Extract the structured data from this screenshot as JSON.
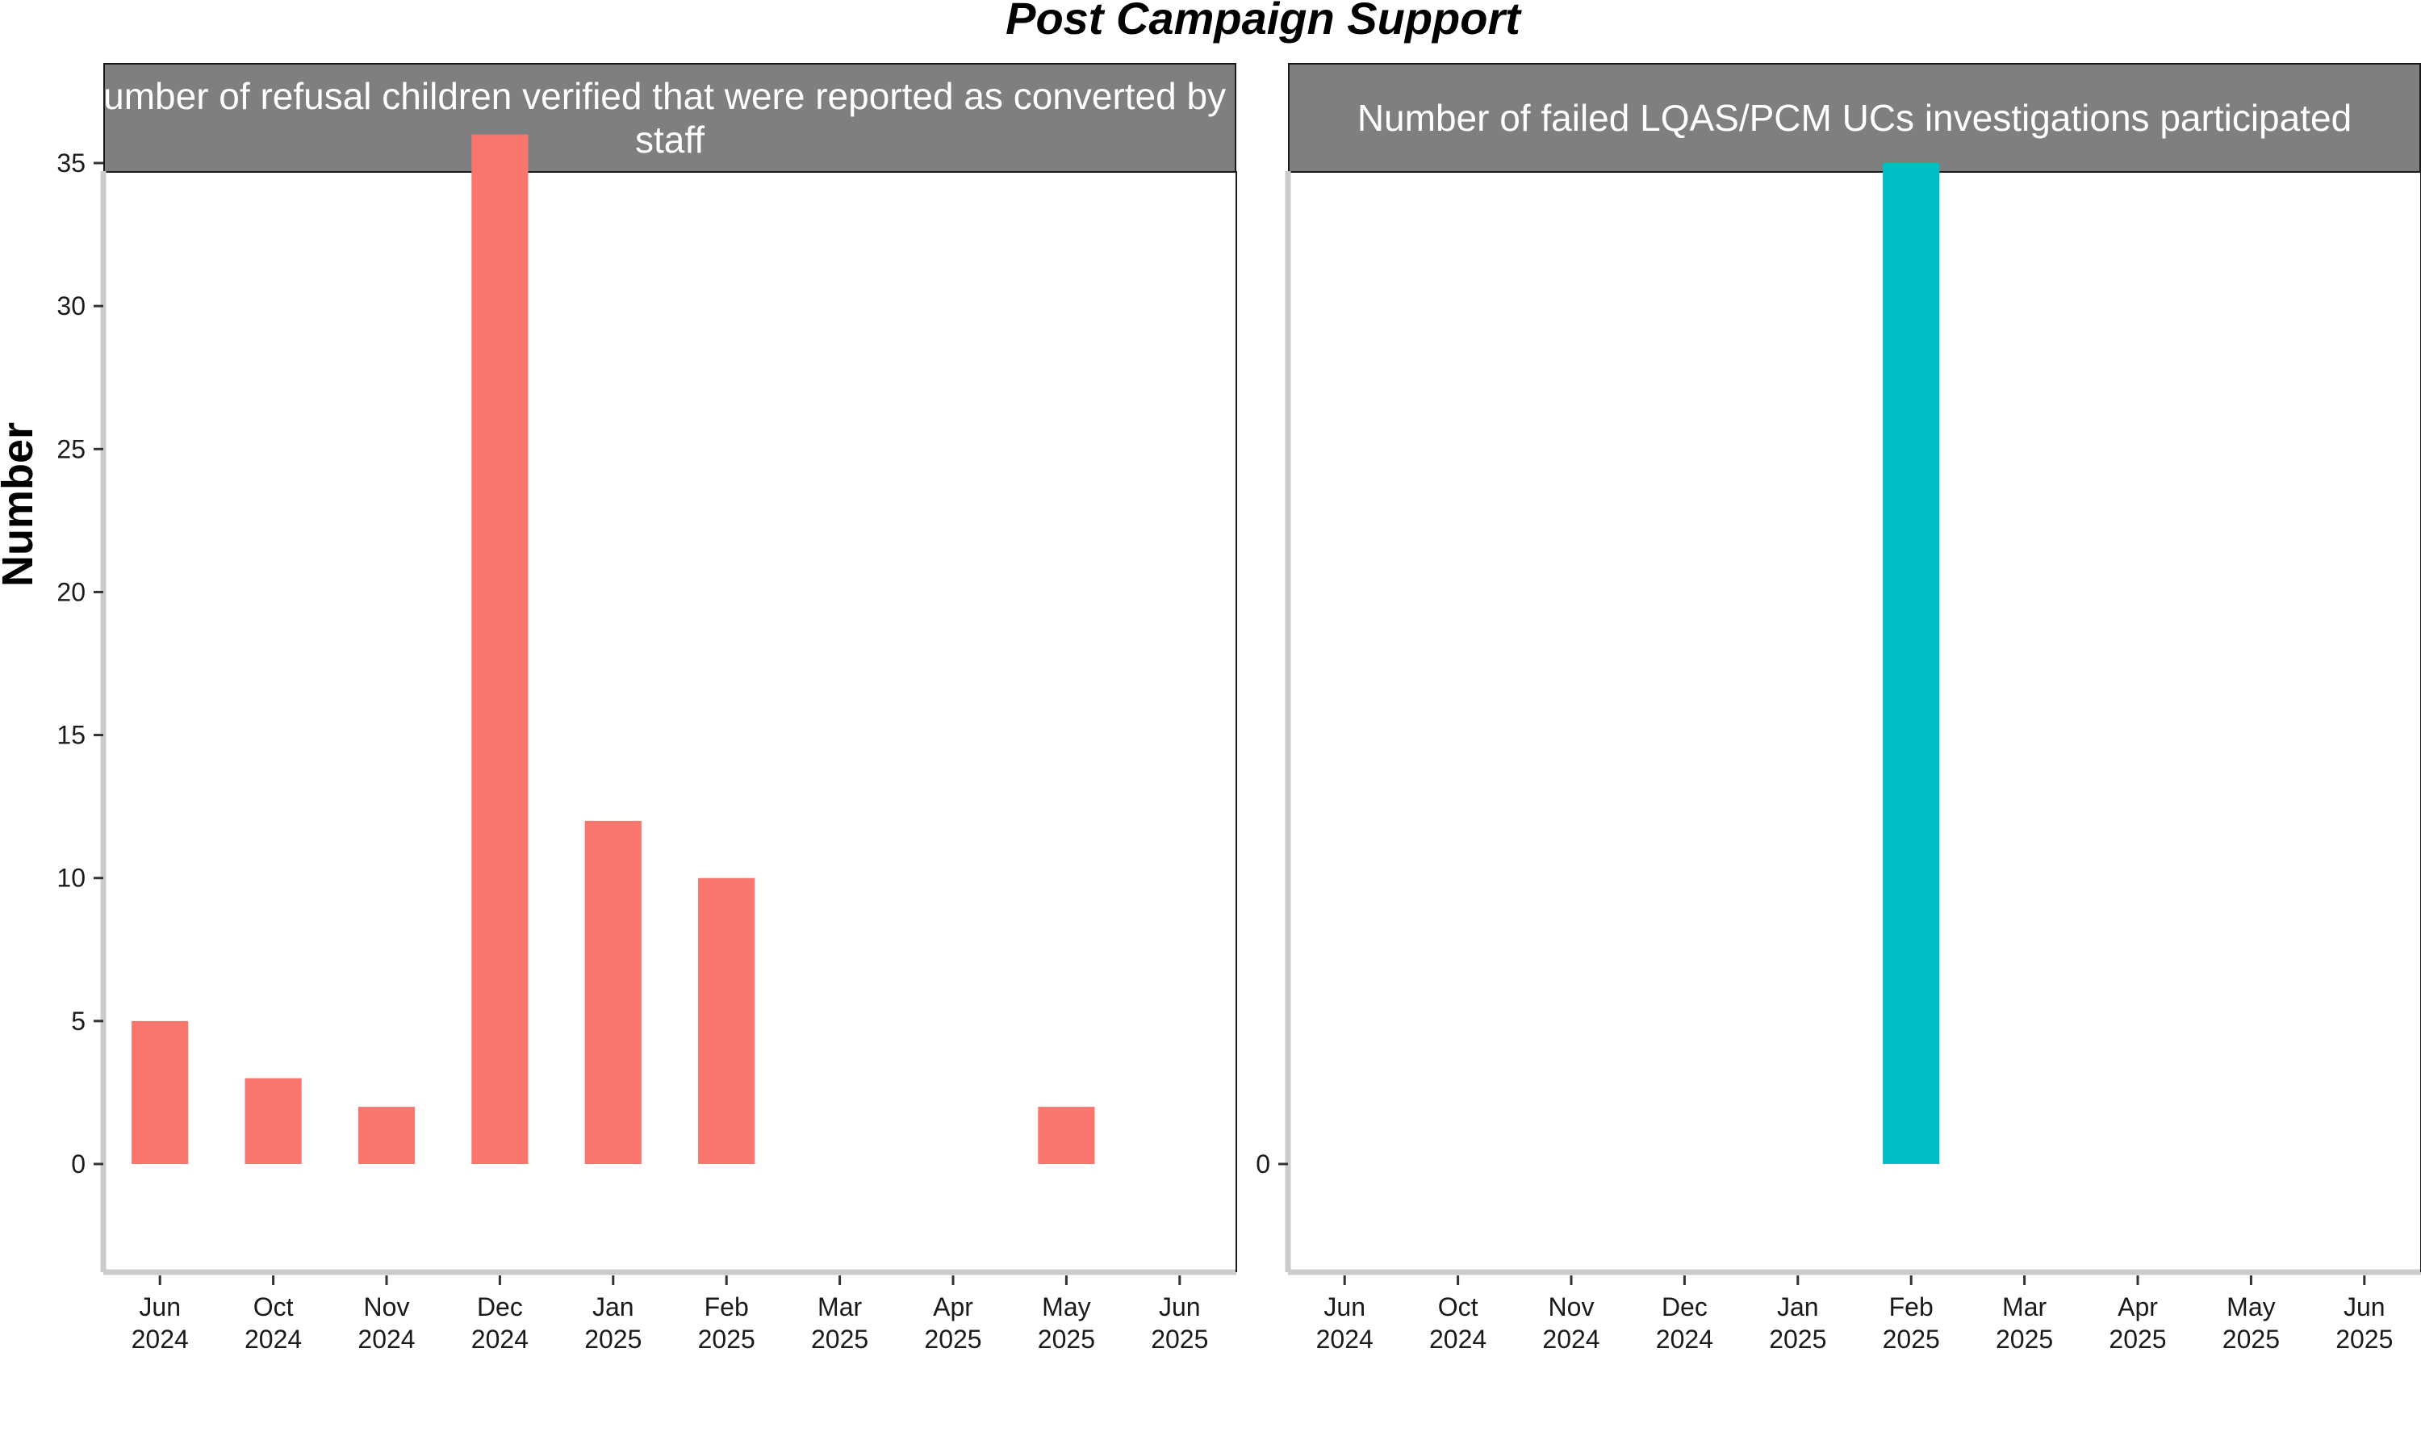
{
  "chart_data": {
    "type": "bar",
    "title": "Post Campaign Support",
    "ylabel": "Number",
    "categories": [
      "Jun\n2024",
      "Oct\n2024",
      "Nov\n2024",
      "Dec\n2024",
      "Jan\n2025",
      "Feb\n2025",
      "Mar\n2025",
      "Apr\n2025",
      "May\n2025",
      "Jun\n2025"
    ],
    "facets": [
      {
        "strip_title": "Number of refusal children verified that were reported as converted by C staff",
        "strip_lines": [
          "Number of refusal children verified that were reported as converted by C",
          "staff"
        ],
        "color": "#F8766D",
        "values": [
          5,
          3,
          2,
          36,
          12,
          10,
          0,
          0,
          2,
          0
        ],
        "ylim": [
          0,
          37.8
        ],
        "yticks": [
          0,
          5,
          10,
          15,
          20,
          25,
          30,
          35
        ]
      },
      {
        "strip_title": "Number of failed LQAS/PCM UCs investigations participated",
        "strip_lines": [
          "Number of failed LQAS/PCM UCs investigations participated"
        ],
        "color": "#00BFC4",
        "values": [
          0,
          0,
          0,
          0,
          0,
          1,
          0,
          0,
          0,
          0
        ],
        "ylim": [
          0,
          1.05
        ],
        "yticks": [
          0
        ]
      }
    ],
    "grid": false,
    "legend": "none"
  }
}
